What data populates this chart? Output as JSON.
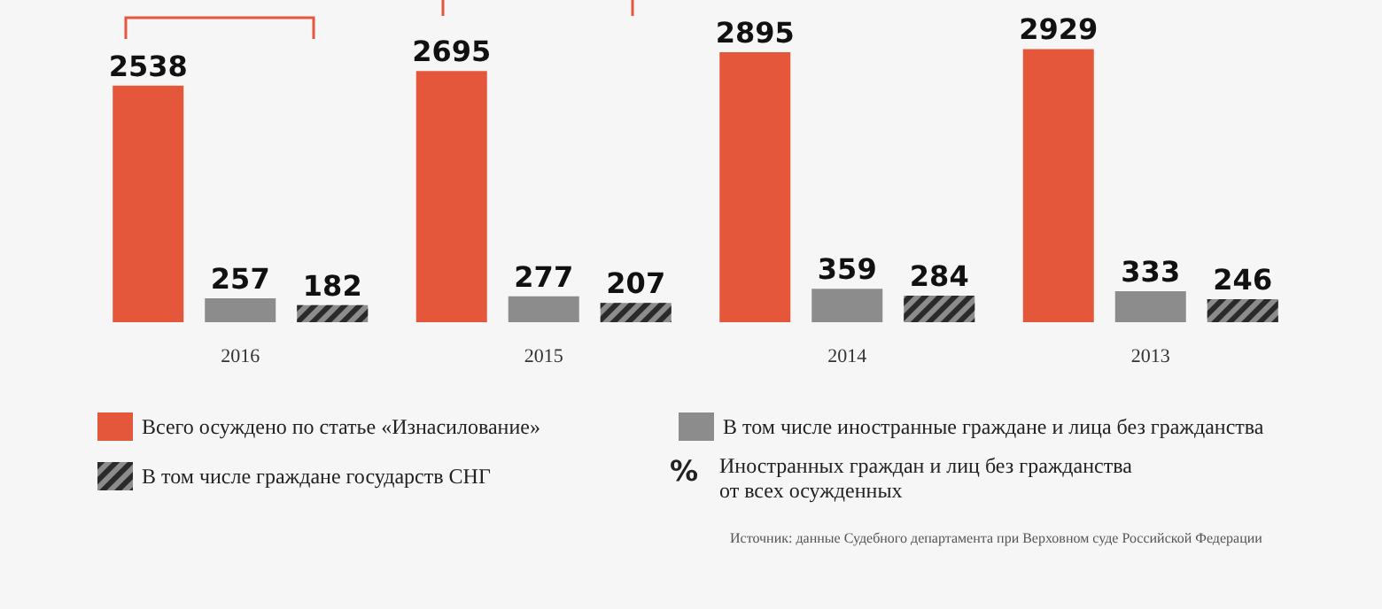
{
  "chart_data": {
    "type": "bar",
    "categories": [
      "2016",
      "2015",
      "2014",
      "2013"
    ],
    "series": [
      {
        "name": "Всего осуждено по статье «Изнасилование»",
        "color": "#e5573b",
        "values": [
          2538,
          2695,
          2895,
          2929
        ]
      },
      {
        "name": "В том числе иностранные граждане и лица без гражданства",
        "color": "#8c8c8c",
        "values": [
          257,
          277,
          359,
          333
        ]
      },
      {
        "name": "В том числе граждане государств СНГ",
        "color": "#8c8c8c",
        "values": [
          182,
          207,
          284,
          246
        ]
      }
    ],
    "data_labels": true,
    "legend": "bottom",
    "annotations": [
      "%",
      "Иностранных граждан и лиц без гражданства\nот всех осужденных",
      "Источник: данные Судебного департамента при Верховном суде Российской Федерации"
    ]
  }
}
